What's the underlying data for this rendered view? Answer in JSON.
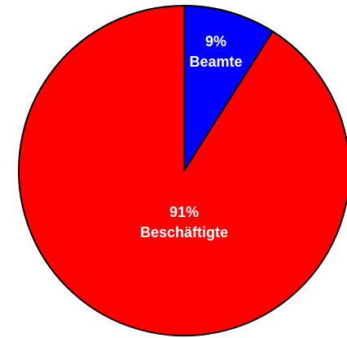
{
  "chart_data": {
    "type": "pie",
    "categories": [
      "Beamte",
      "Beschäftigte"
    ],
    "values": [
      9,
      91
    ],
    "value_labels": [
      "9%",
      "91%"
    ],
    "colors": [
      "#0000ff",
      "#ff0000"
    ]
  }
}
